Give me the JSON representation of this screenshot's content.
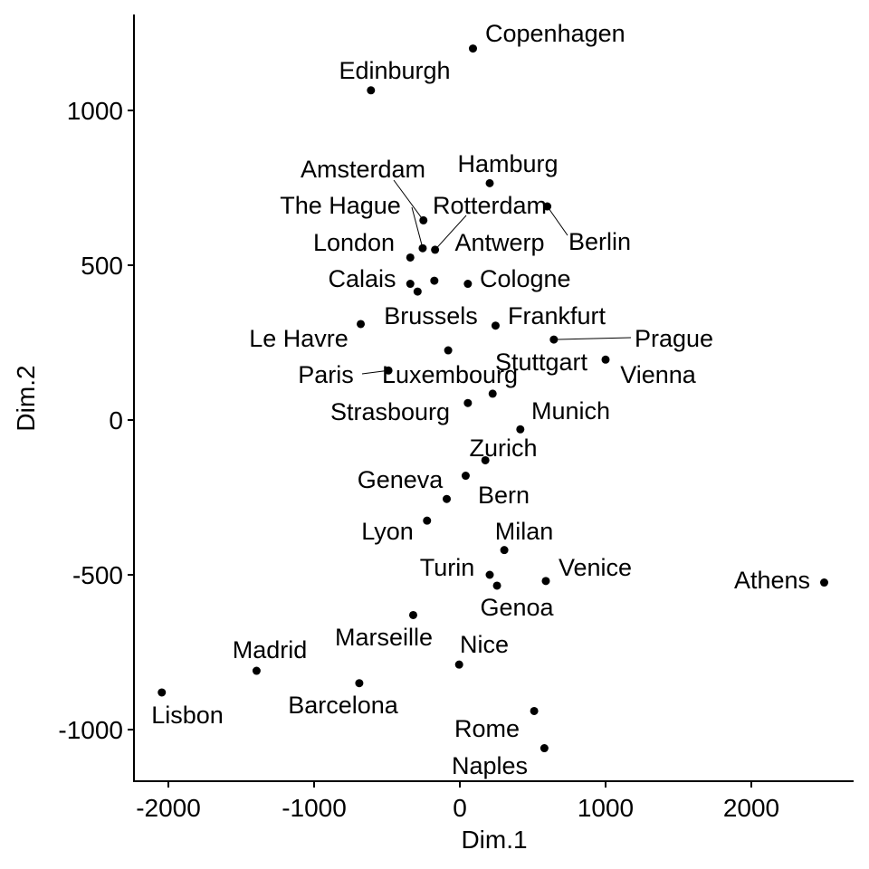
{
  "chart_data": {
    "type": "scatter",
    "title": "",
    "xlabel": "Dim.1",
    "ylabel": "Dim.2",
    "xlim": [
      -2250,
      2700
    ],
    "ylim": [
      -1170,
      1310
    ],
    "x_ticks": [
      -2000,
      -1000,
      0,
      1000,
      2000
    ],
    "x_tick_labels": [
      "-2000",
      "-1000",
      "0",
      "1000",
      "2000"
    ],
    "y_ticks": [
      -1000,
      -500,
      0,
      500,
      1000
    ],
    "y_tick_labels": [
      "-1000",
      "-500",
      "0",
      "500",
      "1000"
    ],
    "grid": false,
    "legend": "none",
    "point_color": "#000000",
    "points": [
      {
        "label": "Copenhagen",
        "x": 90,
        "y": 1200
      },
      {
        "label": "Edinburgh",
        "x": -610,
        "y": 1065
      },
      {
        "label": "Hamburg",
        "x": 205,
        "y": 765
      },
      {
        "label": "Berlin",
        "x": 600,
        "y": 690
      },
      {
        "label": "Amsterdam",
        "x": -250,
        "y": 645
      },
      {
        "label": "The Hague",
        "x": -255,
        "y": 555
      },
      {
        "label": "Rotterdam",
        "x": -170,
        "y": 550
      },
      {
        "label": "London",
        "x": -340,
        "y": 525
      },
      {
        "label": "Antwerp",
        "x": -175,
        "y": 450
      },
      {
        "label": "Calais",
        "x": -340,
        "y": 440
      },
      {
        "label": "Cologne",
        "x": 55,
        "y": 440
      },
      {
        "label": "Brussels",
        "x": -290,
        "y": 415
      },
      {
        "label": "Le Havre",
        "x": -680,
        "y": 310
      },
      {
        "label": "Frankfurt",
        "x": 245,
        "y": 305
      },
      {
        "label": "Prague",
        "x": 645,
        "y": 260
      },
      {
        "label": "Luxembourg",
        "x": -80,
        "y": 225
      },
      {
        "label": "Vienna",
        "x": 1000,
        "y": 195
      },
      {
        "label": "Paris",
        "x": -490,
        "y": 160
      },
      {
        "label": "Stuttgart",
        "x": 225,
        "y": 85
      },
      {
        "label": "Strasbourg",
        "x": 55,
        "y": 55
      },
      {
        "label": "Munich",
        "x": 415,
        "y": -30
      },
      {
        "label": "Zurich",
        "x": 175,
        "y": -130
      },
      {
        "label": "Geneva",
        "x": 40,
        "y": -180
      },
      {
        "label": "Bern",
        "x": -90,
        "y": -255
      },
      {
        "label": "Lyon",
        "x": -225,
        "y": -325
      },
      {
        "label": "Milan",
        "x": 305,
        "y": -420
      },
      {
        "label": "Turin",
        "x": 205,
        "y": -500
      },
      {
        "label": "Venice",
        "x": 590,
        "y": -520
      },
      {
        "label": "Genoa",
        "x": 255,
        "y": -535
      },
      {
        "label": "Athens",
        "x": 2500,
        "y": -525
      },
      {
        "label": "Marseille",
        "x": -320,
        "y": -630
      },
      {
        "label": "Nice",
        "x": -5,
        "y": -790
      },
      {
        "label": "Madrid",
        "x": -1395,
        "y": -810
      },
      {
        "label": "Barcelona",
        "x": -690,
        "y": -850
      },
      {
        "label": "Lisbon",
        "x": -2045,
        "y": -880
      },
      {
        "label": "Rome",
        "x": 510,
        "y": -940
      },
      {
        "label": "Naples",
        "x": 580,
        "y": -1060
      }
    ]
  }
}
